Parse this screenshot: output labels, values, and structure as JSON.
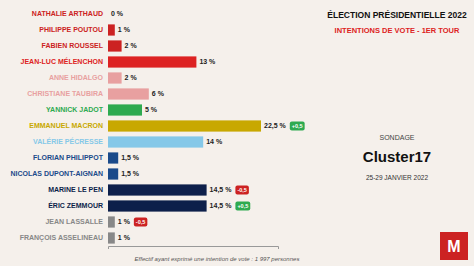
{
  "chart_data": {
    "type": "bar",
    "orientation": "horizontal",
    "title": "ÉLECTION PRÉSIDENTIELLE 2022",
    "subtitle": "INTENTIONS DE VOTE - 1ER TOUR",
    "categories": [
      "NATHALIE ARTHAUD",
      "PHILIPPE POUTOU",
      "FABIEN ROUSSEL",
      "JEAN-LUC MÉLENCHON",
      "ANNE HIDALGO",
      "CHRISTIANE TAUBIRA",
      "YANNICK JADOT",
      "EMMANUEL MACRON",
      "VALÉRIE PÉCRESSE",
      "FLORIAN PHILIPPOT",
      "NICOLAS DUPONT-AIGNAN",
      "MARINE LE PEN",
      "ÉRIC ZEMMOUR",
      "JEAN LASSALLE",
      "FRANÇOIS ASSELINEAU"
    ],
    "values": [
      0,
      1,
      2,
      13,
      2,
      6,
      5,
      22.5,
      14,
      1.5,
      1.5,
      14.5,
      14.5,
      1,
      1
    ],
    "value_labels": [
      "0 %",
      "1 %",
      "2 %",
      "13 %",
      "2 %",
      "6 %",
      "5 %",
      "22,5 %",
      "14 %",
      "1,5 %",
      "1,5 %",
      "14,5 %",
      "14,5 %",
      "1 %",
      "1 %"
    ],
    "colors": [
      "#cc2222",
      "#cc2222",
      "#cc2222",
      "#dd2222",
      "#e8a0a0",
      "#e8a0a0",
      "#2eaa50",
      "#c8a800",
      "#85c8e8",
      "#1a4a8a",
      "#1a4a8a",
      "#0d1f4a",
      "#0d1f4a",
      "#888888",
      "#888888"
    ],
    "xlim": [
      0,
      25
    ],
    "data_labels": true,
    "tick_labels": "y",
    "grid": false,
    "annotations": [
      {
        "text": "+0,5",
        "category": "EMMANUEL MACRON",
        "color": "#2eaa50"
      },
      {
        "text": "-0,5",
        "category": "MARINE LE PEN",
        "color": "#cc2222"
      },
      {
        "text": "+0,5",
        "category": "ÉRIC ZEMMOUR",
        "color": "#2eaa50"
      },
      {
        "text": "-0,5",
        "category": "JEAN LASSALLE",
        "color": "#cc2222"
      },
      {
        "text": "SONDAGE"
      },
      {
        "text": "Cluster17"
      },
      {
        "text": "25-29 JANVIER 2022"
      },
      {
        "text": "Effectif ayant exprimé une intention de vote : 1 997 personnes"
      },
      {
        "text": "M"
      }
    ]
  }
}
